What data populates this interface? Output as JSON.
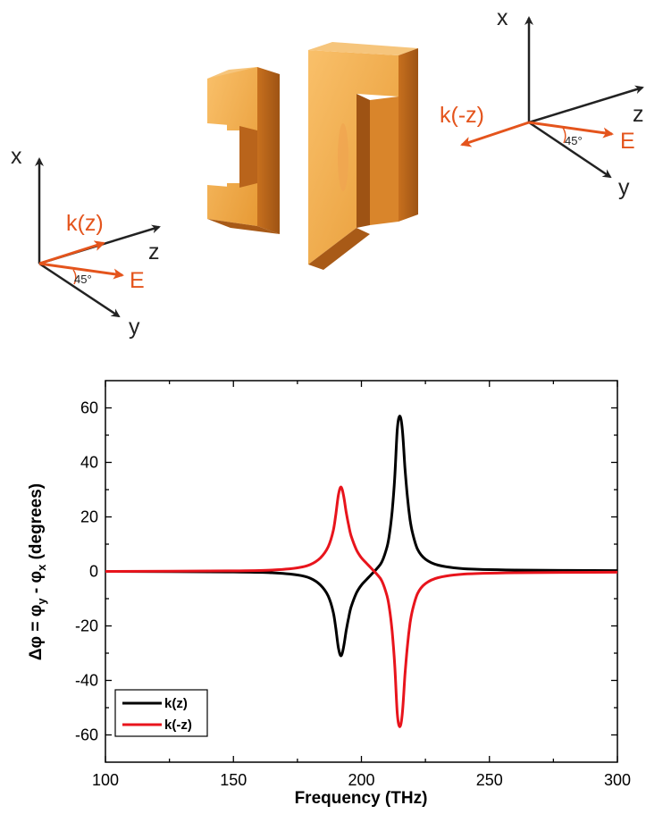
{
  "diagram": {
    "left_axes": {
      "x": "x",
      "y": "y",
      "z": "z",
      "k": "k(z)",
      "E": "E",
      "angle": "45°"
    },
    "right_axes": {
      "x": "x",
      "y": "y",
      "z": "z",
      "k": "k(-z)",
      "E": "E",
      "angle": "45°"
    },
    "colors": {
      "axis": "#222222",
      "accent": "#e4541c",
      "metal_light": "#f5b04a",
      "metal_dark": "#c9711c"
    }
  },
  "chart_data": {
    "type": "line",
    "xlabel": "Frequency (THz)",
    "ylabel": "Δφ = φ",
    "ylabel_sub_y": "y",
    "ylabel_mid": " - φ",
    "ylabel_sub_x": "x",
    "ylabel_tail": " (degrees)",
    "xlim": [
      100,
      300
    ],
    "ylim": [
      -70,
      70
    ],
    "xticks": [
      100,
      150,
      200,
      250,
      300
    ],
    "yticks": [
      -60,
      -40,
      -20,
      0,
      20,
      40,
      60
    ],
    "legend_position": "bottom-left",
    "series": [
      {
        "name": "k(z)",
        "color": "#000000",
        "x": [
          100,
          150,
          165,
          175,
          180,
          184,
          187,
          189,
          190,
          191,
          192,
          193,
          194,
          195,
          196,
          198,
          200,
          202,
          204,
          206,
          208,
          210,
          211,
          212,
          213,
          214,
          215,
          216,
          217,
          218,
          219,
          220,
          222,
          225,
          230,
          240,
          260,
          300
        ],
        "y": [
          0,
          -0.2,
          -0.5,
          -1.3,
          -2.5,
          -5,
          -9,
          -15,
          -21,
          -28,
          -31,
          -28,
          -22,
          -17,
          -13,
          -8,
          -5,
          -3,
          -1,
          1,
          3.5,
          9,
          14,
          22,
          34,
          52,
          57,
          52,
          38,
          27,
          19,
          14,
          8,
          4.5,
          2.3,
          1,
          0.5,
          0.3
        ]
      },
      {
        "name": "k(-z)",
        "color": "#e8141c",
        "x": [
          100,
          150,
          165,
          175,
          180,
          184,
          187,
          189,
          190,
          191,
          192,
          193,
          194,
          195,
          196,
          198,
          200,
          202,
          204,
          206,
          208,
          210,
          211,
          212,
          213,
          214,
          215,
          216,
          217,
          218,
          219,
          220,
          222,
          225,
          230,
          240,
          260,
          300
        ],
        "y": [
          0,
          0.2,
          0.5,
          1.3,
          2.5,
          5,
          9,
          15,
          21,
          28,
          31,
          28,
          22,
          17,
          13,
          8,
          5,
          3,
          1,
          -1,
          -3.5,
          -9,
          -14,
          -22,
          -34,
          -52,
          -57,
          -52,
          -38,
          -27,
          -19,
          -14,
          -8,
          -4.5,
          -2.3,
          -1,
          -0.5,
          -0.3
        ]
      }
    ]
  }
}
